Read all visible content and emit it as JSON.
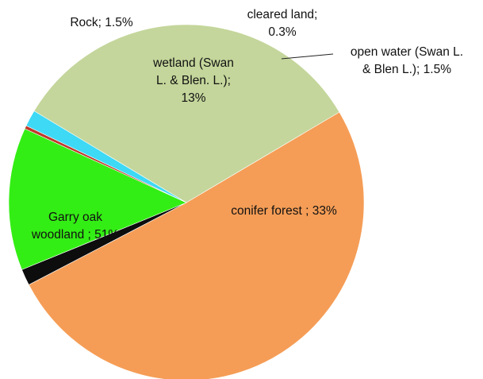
{
  "chart_data": {
    "type": "pie",
    "title": "",
    "slices": [
      {
        "name": "conifer forest",
        "value": 33,
        "label_lines": [
          "conifer forest ; 33%"
        ],
        "color": "#c4d69b"
      },
      {
        "name": "Garry oak woodland",
        "value": 51,
        "label_lines": [
          "Garry oak",
          "woodland ; 51%"
        ],
        "color": "#f59d56"
      },
      {
        "name": "Rock",
        "value": 1.5,
        "label_lines": [
          "Rock; 1.5%"
        ],
        "color": "#0d0d0d"
      },
      {
        "name": "wetland (Swan L. & Blen. L.)",
        "value": 13,
        "label_lines": [
          "wetland (Swan",
          "L. & Blen. L.);",
          "13%"
        ],
        "color": "#33ee14"
      },
      {
        "name": "cleared land",
        "value": 0.3,
        "label_lines": [
          "cleared land;",
          "0.3%"
        ],
        "color": "#c0392b"
      },
      {
        "name": "open water (Swan L. & Blen L.)",
        "value": 1.5,
        "label_lines": [
          "open water (Swan L.",
          "& Blen L.); 1.5%"
        ],
        "color": "#3dd9f5"
      }
    ]
  }
}
